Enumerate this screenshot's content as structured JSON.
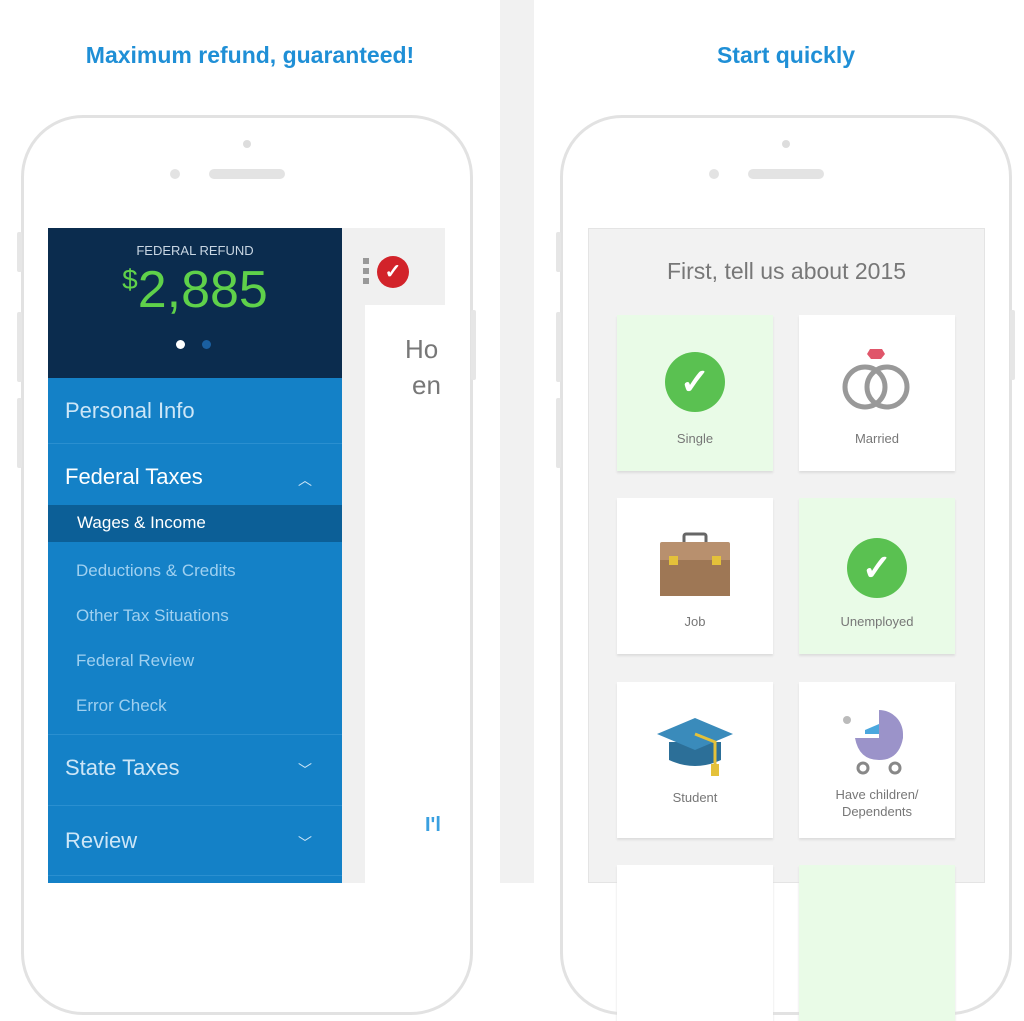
{
  "left_panel": {
    "headline": "Maximum refund, guaranteed!",
    "refund": {
      "label": "FEDERAL REFUND",
      "currency": "$",
      "amount": "2,885",
      "page_dots": 2,
      "active_dot": 1
    },
    "menu": [
      {
        "label": "Personal Info",
        "expanded": false
      },
      {
        "label": "Federal Taxes",
        "expanded": true,
        "chevron": "chevron-up",
        "children": [
          {
            "label": "Wages & Income",
            "active": true
          },
          {
            "label": "Deductions & Credits"
          },
          {
            "label": "Other Tax Situations"
          },
          {
            "label": "Federal Review"
          },
          {
            "label": "Error Check"
          }
        ]
      },
      {
        "label": "State Taxes",
        "chevron": "chevron-down"
      },
      {
        "label": "Review",
        "chevron": "chevron-down"
      }
    ],
    "content_peek": {
      "line1": "Ho",
      "line2": "en",
      "link": "I'l"
    },
    "colors": {
      "navy": "#0b2c4e",
      "menu_blue": "#1481c7",
      "refund_green": "#5fd14a",
      "brand_red": "#d2232a"
    }
  },
  "right_panel": {
    "headline": "Start quickly",
    "title": "First, tell us about 2015",
    "tiles": [
      {
        "label": "Single",
        "selected": true,
        "icon": "check-circle-icon"
      },
      {
        "label": "Married",
        "selected": false,
        "icon": "rings-icon"
      },
      {
        "label": "Job",
        "selected": false,
        "icon": "briefcase-icon"
      },
      {
        "label": "Unemployed",
        "selected": true,
        "icon": "check-circle-icon"
      },
      {
        "label": "Student",
        "selected": false,
        "icon": "graduation-cap-icon"
      },
      {
        "label": "Have children/ Dependents",
        "selected": false,
        "icon": "stroller-icon"
      }
    ],
    "colors": {
      "selected_tile": "#e9fbe7",
      "check_green": "#5ac151"
    }
  }
}
